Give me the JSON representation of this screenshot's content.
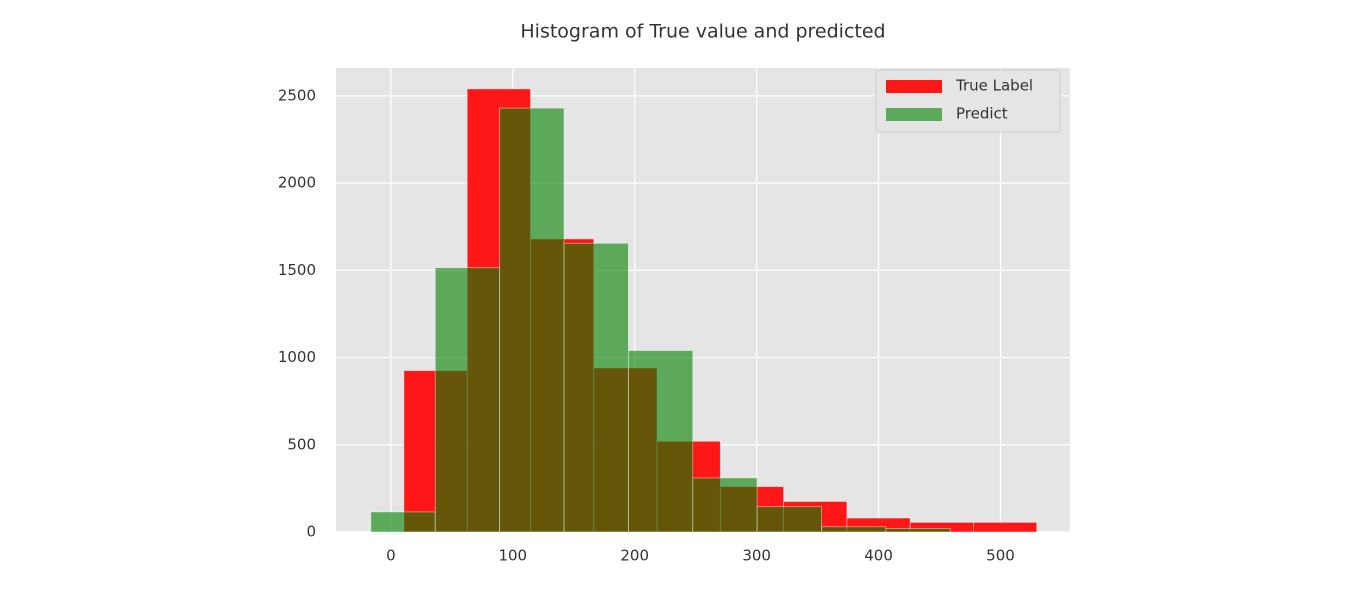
{
  "chart_data": {
    "type": "histogram",
    "title": "Histogram of True value and predicted",
    "series": [
      {
        "name": "True Label",
        "color": "#ff0000",
        "opacity": 0.9,
        "bins": [
          10.7,
          62.6,
          114.5,
          166.4,
          218.3,
          270.2,
          322.1,
          374.0,
          425.9,
          477.8,
          529.7
        ],
        "values": [
          925,
          2540,
          1680,
          940,
          520,
          260,
          175,
          80,
          55,
          55
        ]
      },
      {
        "name": "Predict",
        "color": "#008000",
        "opacity": 0.6,
        "bins": [
          -16.4,
          36.4,
          89.2,
          142.0,
          194.8,
          247.6,
          300.4,
          353.2,
          406.0,
          458.8
        ],
        "values": [
          115,
          1515,
          2430,
          1655,
          1040,
          310,
          145,
          30,
          20
        ]
      }
    ],
    "xlim": [
      -45,
      557
    ],
    "xticks": [
      0,
      100,
      200,
      300,
      400,
      500
    ],
    "ylim": [
      0,
      2660
    ],
    "yticks": [
      0,
      500,
      1000,
      1500,
      2000,
      2500
    ],
    "grid": true,
    "legend": "upper right"
  }
}
